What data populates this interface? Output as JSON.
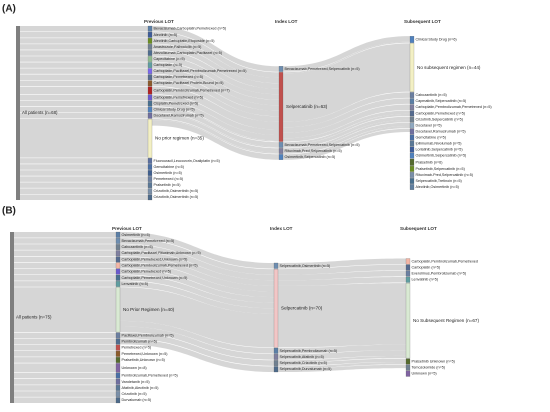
{
  "colors": {
    "flow": "#cfcfcf",
    "node_default": "#6f8fb0",
    "all_patients": "#7a7a7a",
    "column_header": "#333333",
    "label": "#222222"
  },
  "panels": [
    {
      "id": "A",
      "panel_label": "(A)",
      "columns": [
        "Previous LOT",
        "Index LOT",
        "Subsequent LOT"
      ],
      "source": {
        "label": "All patients (n=68)",
        "n": 68,
        "color": "#7f7f7f"
      },
      "previous": [
        {
          "label": "Bevacizumab,Carboplatin,Pemetrexed (n=5)",
          "n": 5,
          "color": "#5b7fa6"
        },
        {
          "label": "Alectinib (n=5)",
          "n": 5,
          "color": "#3d5c99"
        },
        {
          "label": "Alectinib,Carboplatin,Etoposide (n=5)",
          "n": 5,
          "color": "#6b8e23"
        },
        {
          "label": "Anastrozole,Palbociclib (n=5)",
          "n": 5,
          "color": "#708090"
        },
        {
          "label": "Atezolizumab,Carboplatin,Paclitaxel (n=5)",
          "n": 5,
          "color": "#4f6d8f"
        },
        {
          "label": "Capecitabine (n=5)",
          "n": 5,
          "color": "#8fbc8f"
        },
        {
          "label": "Carboplatin (n=5)",
          "n": 5,
          "color": "#5f9ea0"
        },
        {
          "label": "Carboplatin,Paclitaxel,Pembrolizumab,Pemetrexed (n=5)",
          "n": 5,
          "color": "#7b68ee"
        },
        {
          "label": "Carboplatin,Pemetrexed (n=5)",
          "n": 5,
          "color": "#556b8f"
        },
        {
          "label": "Carboplatin,Paclitaxel Protein-Bound (n=5)",
          "n": 5,
          "color": "#8b5a2b"
        },
        {
          "label": "Carboplatin,Pembrolizumab,Pemetrexed (n=7)",
          "n": 7,
          "color": "#b22222"
        },
        {
          "label": "Carboplatin,Pemetrexed (n=5)",
          "n": 5,
          "color": "#6a5acd"
        },
        {
          "label": "Cisplatin,Pemetrexed (n=5)",
          "n": 5,
          "color": "#48708f"
        },
        {
          "label": "Clinical Study Drug (n=5)",
          "n": 5,
          "color": "#4f81bd"
        },
        {
          "label": "Docetaxel,Ramucirumab (n=5)",
          "n": 5,
          "color": "#6f6f9f"
        },
        {
          "label": "No prior regimen (n=35)",
          "n": 35,
          "color": "#f3f0c4"
        },
        {
          "label": "Fluorouracil,Leucovorin,Oxaliplatin (n=5)",
          "n": 5,
          "color": "#5b6f9f"
        },
        {
          "label": "Gemcitabine (n=5)",
          "n": 5,
          "color": "#4a6fa5"
        },
        {
          "label": "Osimertinib (n=5)",
          "n": 5,
          "color": "#3f5f8f"
        },
        {
          "label": "Pemetrexed (n=5)",
          "n": 5,
          "color": "#6b7fa0"
        },
        {
          "label": "Pralsetinib (n=5)",
          "n": 5,
          "color": "#5a7896"
        },
        {
          "label": "Crizotinib,Osimertinib (n=5)",
          "n": 5,
          "color": "#7a8fa8"
        },
        {
          "label": "Crizotinib,Osimertinib (n=5)",
          "n": 5,
          "color": "#4d6a8a"
        }
      ],
      "index": [
        {
          "label": "Bevacizumab,Pemetrexed,Selpercatinib (n=5)",
          "n": 5,
          "color": "#6d8db0"
        },
        {
          "label": "Selpercatinib (n=63)",
          "n": 63,
          "color": "#c0504d"
        },
        {
          "label": "Bevacizumab,Pemetrexed,Selpercatinib (n=5)",
          "n": 5,
          "color": "#6d8db0"
        },
        {
          "label": "Rituximab,Pred,Selpercatinib (n=5)",
          "n": 5,
          "color": "#7f7f9f"
        },
        {
          "label": "Osimertinib,Selpercatinib (n=5)",
          "n": 5,
          "color": "#4f81bd"
        }
      ],
      "subsequent": [
        {
          "label": "Clinical Study Drug (n=6)",
          "n": 6,
          "color": "#4f81bd"
        },
        {
          "label": "No subsequent regimen (n=44)",
          "n": 44,
          "color": "#f3f0c4"
        },
        {
          "label": "Cabozantinib (n=5)",
          "n": 5,
          "color": "#6b7fa0"
        },
        {
          "label": "Capmatinib,Selpercatinib (n=5)",
          "n": 5,
          "color": "#5b7fa6"
        },
        {
          "label": "Carboplatin,Pembrolizumab,Pemetrexed (n=5)",
          "n": 5,
          "color": "#7f7f9f"
        },
        {
          "label": "Carboplatin,Pemetrexed (n=5)",
          "n": 5,
          "color": "#556b8f"
        },
        {
          "label": "Crizotinib,Selpercatinib (n=5)",
          "n": 5,
          "color": "#708090"
        },
        {
          "label": "Docetaxel (n=5)",
          "n": 5,
          "color": "#8fa8c0"
        },
        {
          "label": "Docetaxel,Ramucirumab (n=5)",
          "n": 5,
          "color": "#6f6f9f"
        },
        {
          "label": "Gemcitabine (n=5)",
          "n": 5,
          "color": "#4a6fa5"
        },
        {
          "label": "Ipilimumab,Nivolumab (n=5)",
          "n": 5,
          "color": "#5a7896"
        },
        {
          "label": "Lorlatinib,Selpercatinib (n=5)",
          "n": 5,
          "color": "#3d5c99"
        },
        {
          "label": "Osimertinib,Selpercatinib (n=5)",
          "n": 5,
          "color": "#4f81bd"
        },
        {
          "label": "Pralsetinib (n=6)",
          "n": 6,
          "color": "#556b2f"
        },
        {
          "label": "Pralsetinib,Selpercatinib (n=5)",
          "n": 5,
          "color": "#6b8e23"
        },
        {
          "label": "Rituximab-Pred,Selpercatinib (n=5)",
          "n": 5,
          "color": "#7a8fa8"
        },
        {
          "label": "Selpercatinib,Tretinoin (n=5)",
          "n": 5,
          "color": "#48708f"
        },
        {
          "label": "Alectinib,Osimertinib (n=5)",
          "n": 5,
          "color": "#5f7f9f"
        }
      ]
    },
    {
      "id": "B",
      "panel_label": "(B)",
      "columns": [
        "Previous LOT",
        "Index LOT",
        "Subsequent LOT"
      ],
      "source": {
        "label": "All patients (n=75)",
        "n": 75,
        "color": "#7f7f7f"
      },
      "previous": [
        {
          "label": "Osimertinib (n=5)",
          "n": 5,
          "color": "#5b7fa6"
        },
        {
          "label": "Bevacizumab,Pemetrexed (n=5)",
          "n": 5,
          "color": "#6d8db0"
        },
        {
          "label": "Cabozantinib (n=5)",
          "n": 5,
          "color": "#708090"
        },
        {
          "label": "Carboplatin,Paclitaxel,Rituximab,Unknown (n=5)",
          "n": 5,
          "color": "#7f7f9f"
        },
        {
          "label": "Carboplatin,Pemetrexed,Unknown (n=5)",
          "n": 5,
          "color": "#556b8f"
        },
        {
          "label": "Carboplatin,Pembrolizumab,Pemetrexed (n=5)",
          "n": 5,
          "color": "#f4b6a6"
        },
        {
          "label": "Carboplatin,Pemetrexed (n=5)",
          "n": 5,
          "color": "#6a5acd"
        },
        {
          "label": "Carboplatin,Pemetrexed,Unknown (n=5)",
          "n": 5,
          "color": "#48708f"
        },
        {
          "label": "Lenvatinib (n=5)",
          "n": 5,
          "color": "#5f9ea0"
        },
        {
          "label": "No Prior Regimen (n=40)",
          "n": 40,
          "color": "#d9ead3"
        },
        {
          "label": "Paclitaxel,Pembrolizumab (n=5)",
          "n": 5,
          "color": "#6b7fa0"
        },
        {
          "label": "Pembrolizumab (n=5)",
          "n": 5,
          "color": "#4f6d8f"
        },
        {
          "label": "Pemetrexed (n=5)",
          "n": 5,
          "color": "#c0504d"
        },
        {
          "label": "Pemetrexed,Unknown (n=5)",
          "n": 5,
          "color": "#8b5a2b"
        },
        {
          "label": "Pralsetinib,Unknown (n=5)",
          "n": 5,
          "color": "#556b2f"
        },
        {
          "label": "Unknown (n=8)",
          "n": 8,
          "color": "#8064a2"
        },
        {
          "label": "Pembrolizumab,Pemetrexed (n=5)",
          "n": 5,
          "color": "#4a6fa5"
        },
        {
          "label": "Vandetanib (n=5)",
          "n": 5,
          "color": "#6f6f9f"
        },
        {
          "label": "Afatinib,Alectinib (n=5)",
          "n": 5,
          "color": "#5a7896"
        },
        {
          "label": "Crizotinib (n=5)",
          "n": 5,
          "color": "#7a8fa8"
        },
        {
          "label": "Durvalumab (n=5)",
          "n": 5,
          "color": "#4d6a8a"
        }
      ],
      "index": [
        {
          "label": "Selpercatinib,Osimertinib (n=5)",
          "n": 5,
          "color": "#6d8db0"
        },
        {
          "label": "Selpercatinib (n=70)",
          "n": 70,
          "color": "#f2c6c6"
        },
        {
          "label": "Selpercatinib,Pembrolizumab (n=5)",
          "n": 5,
          "color": "#5b7fa6"
        },
        {
          "label": "Selpercatinib,Afatinib (n=5)",
          "n": 5,
          "color": "#7f7f9f"
        },
        {
          "label": "Selpercatinib,Crizotinib (n=5)",
          "n": 5,
          "color": "#708090"
        },
        {
          "label": "Selpercatinib,Durvalumab (n=5)",
          "n": 5,
          "color": "#4d6a8a"
        }
      ],
      "subsequent": [
        {
          "label": "Carboplatin,Pembrolizumab,Pemetrexed",
          "n": 5,
          "color": "#f4b6a6"
        },
        {
          "label": "Carboplatin (n=5)",
          "n": 5,
          "color": "#556b8f"
        },
        {
          "label": "Everolimus,Pembrolizumab (n=5)",
          "n": 5,
          "color": "#6b7fa0"
        },
        {
          "label": "Lenvatinib (n=5)",
          "n": 5,
          "color": "#5f9ea0"
        },
        {
          "label": "No Subsequent Regimen (n=67)",
          "n": 67,
          "color": "#d9ead3"
        },
        {
          "label": "Pralsetinib Unknown (n=5)",
          "n": 5,
          "color": "#556b2f"
        },
        {
          "label": "Temozolomide (n=5)",
          "n": 5,
          "color": "#708090"
        },
        {
          "label": "Unknown (n=5)",
          "n": 5,
          "color": "#8064a2"
        }
      ]
    }
  ]
}
